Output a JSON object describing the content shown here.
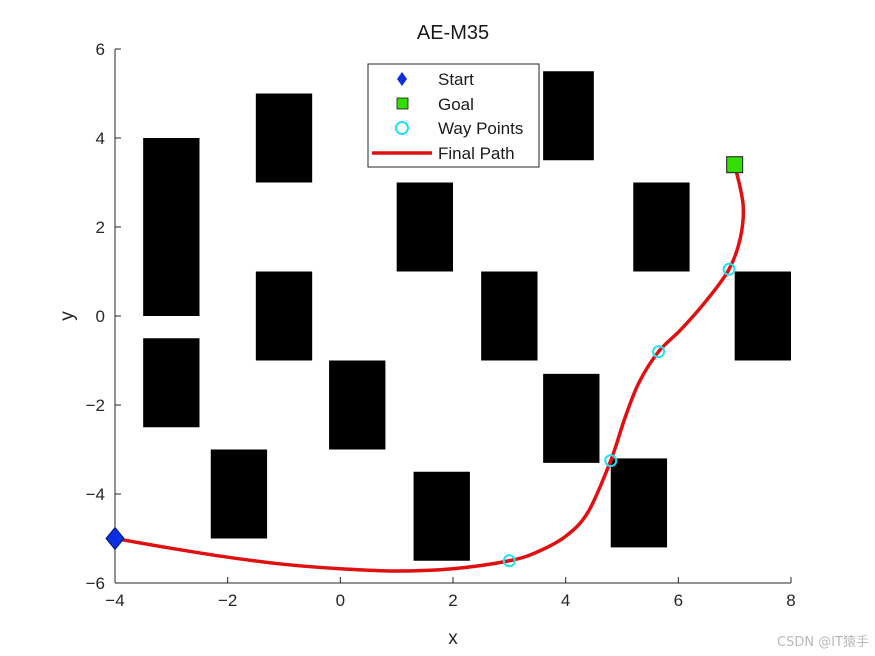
{
  "chart_data": {
    "type": "scatter",
    "title": "AE-M35",
    "xlabel": "x",
    "ylabel": "y",
    "xlim": [
      -4,
      8
    ],
    "ylim": [
      -6,
      6
    ],
    "xticks": [
      -4,
      -2,
      0,
      2,
      4,
      6,
      8
    ],
    "yticks": [
      -6,
      -4,
      -2,
      0,
      2,
      4,
      6
    ],
    "grid": false,
    "legend": {
      "placement": "top-center",
      "entries": [
        "Start",
        "Goal",
        "Way Points",
        "Final Path"
      ]
    },
    "colors": {
      "obstacle": "#000000",
      "start": "#0a2fe0",
      "goal": "#33dd00",
      "waypoint": "#22e0f0",
      "path": "#e01010"
    },
    "obstacles": [
      {
        "x0": -3.5,
        "x1": -2.5,
        "y0": 0.0,
        "y1": 4.0
      },
      {
        "x0": -3.5,
        "x1": -2.5,
        "y0": -2.5,
        "y1": -0.5
      },
      {
        "x0": -1.5,
        "x1": -0.5,
        "y0": 3.0,
        "y1": 5.0
      },
      {
        "x0": -1.5,
        "x1": -0.5,
        "y0": -1.0,
        "y1": 1.0
      },
      {
        "x0": -2.3,
        "x1": -1.3,
        "y0": -5.0,
        "y1": -3.0
      },
      {
        "x0": -0.2,
        "x1": 0.8,
        "y0": -3.0,
        "y1": -1.0
      },
      {
        "x0": 1.0,
        "x1": 2.0,
        "y0": 1.0,
        "y1": 3.0
      },
      {
        "x0": 1.3,
        "x1": 2.3,
        "y0": -5.5,
        "y1": -3.5
      },
      {
        "x0": 2.5,
        "x1": 3.5,
        "y0": -1.0,
        "y1": 1.0
      },
      {
        "x0": 3.6,
        "x1": 4.5,
        "y0": 3.5,
        "y1": 5.5
      },
      {
        "x0": 3.6,
        "x1": 4.6,
        "y0": -3.3,
        "y1": -1.3
      },
      {
        "x0": 5.2,
        "x1": 6.2,
        "y0": 1.0,
        "y1": 3.0
      },
      {
        "x0": 4.8,
        "x1": 5.8,
        "y0": -5.2,
        "y1": -3.2
      },
      {
        "x0": 7.0,
        "x1": 8.0,
        "y0": -1.0,
        "y1": 1.0
      }
    ],
    "start": {
      "x": -4,
      "y": -5
    },
    "goal": {
      "x": 7,
      "y": 3.4
    },
    "way_points": [
      {
        "x": 3.0,
        "y": -5.5
      },
      {
        "x": 4.8,
        "y": -3.25
      },
      {
        "x": 5.65,
        "y": -0.8
      },
      {
        "x": 6.9,
        "y": 1.05
      }
    ],
    "final_path": [
      {
        "x": -4.0,
        "y": -5.0
      },
      {
        "x": -3.0,
        "y": -5.22
      },
      {
        "x": -2.0,
        "y": -5.42
      },
      {
        "x": -1.0,
        "y": -5.58
      },
      {
        "x": 0.0,
        "y": -5.68
      },
      {
        "x": 1.0,
        "y": -5.73
      },
      {
        "x": 2.0,
        "y": -5.68
      },
      {
        "x": 3.0,
        "y": -5.5
      },
      {
        "x": 3.5,
        "y": -5.3
      },
      {
        "x": 4.0,
        "y": -4.95
      },
      {
        "x": 4.4,
        "y": -4.4
      },
      {
        "x": 4.8,
        "y": -3.25
      },
      {
        "x": 5.05,
        "y": -2.3
      },
      {
        "x": 5.3,
        "y": -1.5
      },
      {
        "x": 5.65,
        "y": -0.8
      },
      {
        "x": 6.05,
        "y": -0.3
      },
      {
        "x": 6.5,
        "y": 0.35
      },
      {
        "x": 6.9,
        "y": 1.05
      },
      {
        "x": 7.1,
        "y": 1.75
      },
      {
        "x": 7.15,
        "y": 2.5
      },
      {
        "x": 7.0,
        "y": 3.4
      }
    ]
  },
  "watermark": "CSDN @IT猿手"
}
